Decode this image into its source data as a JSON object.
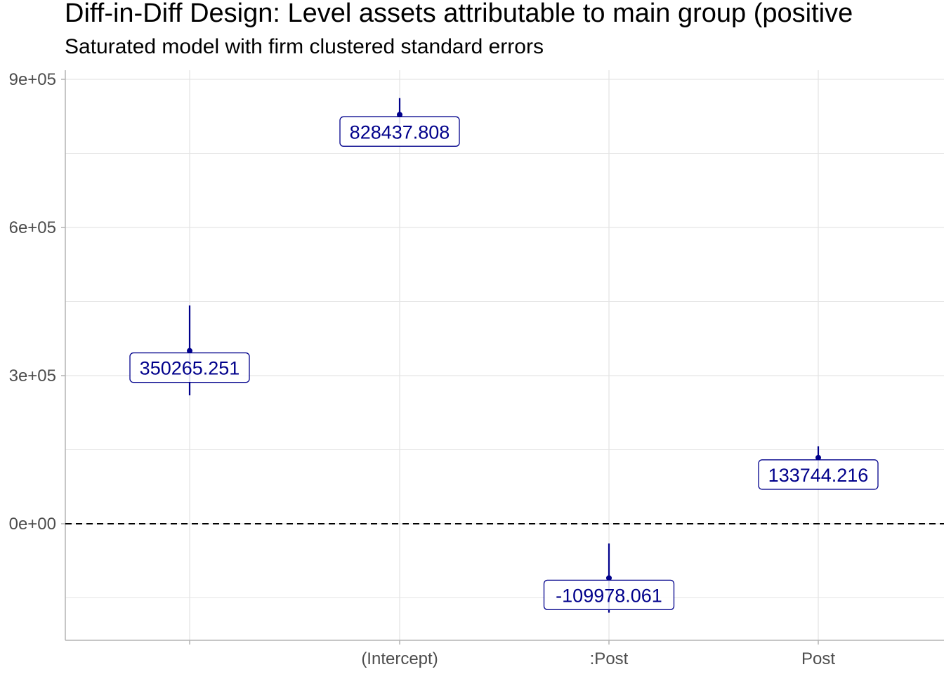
{
  "chart_data": {
    "type": "scatter",
    "title": "Diff-in-Diff Design: Level assets attributable to main group (positive",
    "subtitle": "Saturated model with firm clustered standard errors",
    "xlabel": "",
    "ylabel": "",
    "categories": [
      "",
      "(Intercept)",
      ":Post",
      "Post"
    ],
    "estimates": [
      350265.251,
      828437.808,
      -109978.061,
      133744.216
    ],
    "ci_low": [
      260000,
      810000,
      -180000,
      113000
    ],
    "ci_high": [
      442000,
      862000,
      -40000,
      157000
    ],
    "labels": [
      "350265.251",
      "828437.808",
      "-109978.061",
      "133744.216"
    ],
    "y_ticks": [
      0,
      300000,
      600000,
      900000
    ],
    "y_tick_labels": [
      "0e+00",
      "3e+05",
      "6e+05",
      "9e+05"
    ],
    "ylim": [
      -235000,
      915000
    ],
    "reference_line": 0,
    "grid": true,
    "colors": {
      "point": "#00008B",
      "label_text": "#00008B",
      "grid": "#e5e5e5",
      "axis": "#b3b3b3",
      "tick_text": "#4d4d4d",
      "reference": "#000000"
    }
  }
}
